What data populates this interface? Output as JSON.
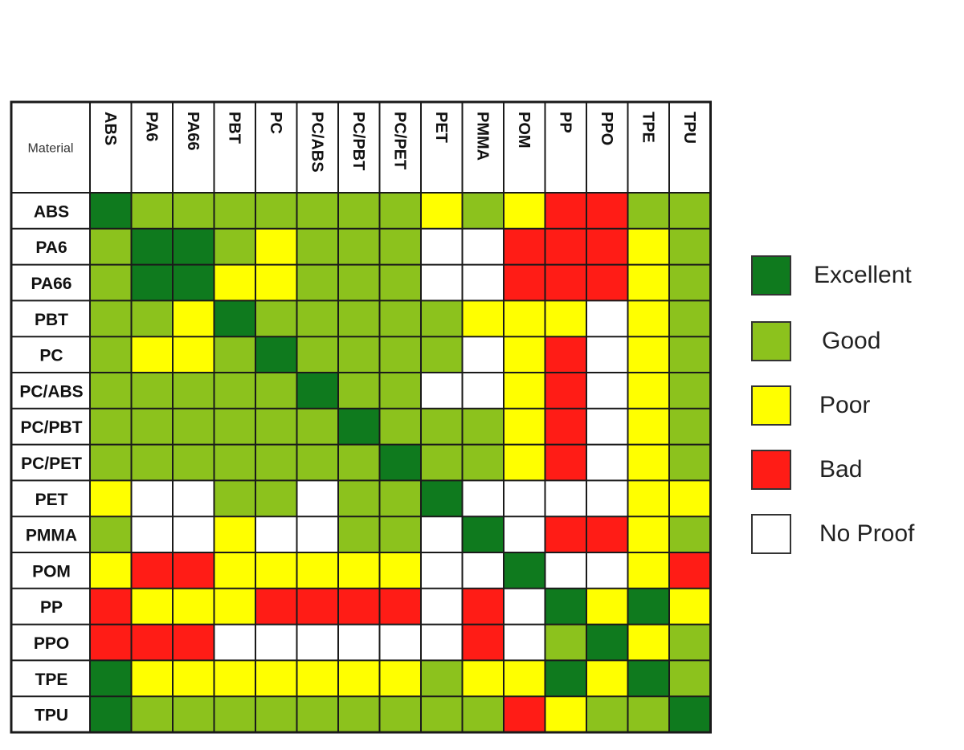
{
  "colors": {
    "excellent": "#0f7a1e",
    "good": "#8cc21d",
    "poor": "#ffff00",
    "bad": "#ff1c16",
    "no_proof": "#ffffff",
    "grid": "#1a1a1a"
  },
  "chart_data": {
    "type": "heatmap",
    "corner_label": "Material",
    "columns": [
      "ABS",
      "PA6",
      "PA66",
      "PBT",
      "PC",
      "PC/ABS",
      "PC/PBT",
      "PC/PET",
      "PET",
      "PMMA",
      "POM",
      "PP",
      "PPO",
      "TPE",
      "TPU"
    ],
    "rows": [
      "ABS",
      "PA6",
      "PA66",
      "PBT",
      "PC",
      "PC/ABS",
      "PC/PBT",
      "PC/PET",
      "PET",
      "PMMA",
      "POM",
      "PP",
      "PPO",
      "TPE",
      "TPU"
    ],
    "legend": [
      {
        "key": "E",
        "label": "Excellent"
      },
      {
        "key": "G",
        "label": "Good"
      },
      {
        "key": "P",
        "label": "Poor"
      },
      {
        "key": "B",
        "label": "Bad"
      },
      {
        "key": "N",
        "label": "No Proof"
      }
    ],
    "values": [
      [
        "E",
        "G",
        "G",
        "G",
        "G",
        "G",
        "G",
        "G",
        "P",
        "G",
        "P",
        "B",
        "B",
        "G",
        "G"
      ],
      [
        "G",
        "E",
        "E",
        "G",
        "P",
        "G",
        "G",
        "G",
        "N",
        "N",
        "B",
        "B",
        "B",
        "P",
        "G"
      ],
      [
        "G",
        "E",
        "E",
        "P",
        "P",
        "G",
        "G",
        "G",
        "N",
        "N",
        "B",
        "B",
        "B",
        "P",
        "G"
      ],
      [
        "G",
        "G",
        "P",
        "E",
        "G",
        "G",
        "G",
        "G",
        "G",
        "P",
        "P",
        "P",
        "N",
        "P",
        "G"
      ],
      [
        "G",
        "P",
        "P",
        "G",
        "E",
        "G",
        "G",
        "G",
        "G",
        "N",
        "P",
        "B",
        "N",
        "P",
        "G"
      ],
      [
        "G",
        "G",
        "G",
        "G",
        "G",
        "E",
        "G",
        "G",
        "N",
        "N",
        "P",
        "B",
        "N",
        "P",
        "G"
      ],
      [
        "G",
        "G",
        "G",
        "G",
        "G",
        "G",
        "E",
        "G",
        "G",
        "G",
        "P",
        "B",
        "N",
        "P",
        "G"
      ],
      [
        "G",
        "G",
        "G",
        "G",
        "G",
        "G",
        "G",
        "E",
        "G",
        "G",
        "P",
        "B",
        "N",
        "P",
        "G"
      ],
      [
        "P",
        "N",
        "N",
        "G",
        "G",
        "N",
        "G",
        "G",
        "E",
        "N",
        "N",
        "N",
        "N",
        "P",
        "P"
      ],
      [
        "G",
        "N",
        "N",
        "P",
        "N",
        "N",
        "G",
        "G",
        "N",
        "E",
        "N",
        "B",
        "B",
        "P",
        "G"
      ],
      [
        "P",
        "B",
        "B",
        "P",
        "P",
        "P",
        "P",
        "P",
        "N",
        "N",
        "E",
        "N",
        "N",
        "P",
        "B"
      ],
      [
        "B",
        "P",
        "P",
        "P",
        "B",
        "B",
        "B",
        "B",
        "N",
        "B",
        "N",
        "E",
        "P",
        "E",
        "P"
      ],
      [
        "B",
        "B",
        "B",
        "N",
        "N",
        "N",
        "N",
        "N",
        "N",
        "B",
        "N",
        "G",
        "E",
        "P",
        "G"
      ],
      [
        "E",
        "P",
        "P",
        "P",
        "P",
        "P",
        "P",
        "P",
        "G",
        "P",
        "P",
        "E",
        "P",
        "E",
        "G"
      ],
      [
        "E",
        "G",
        "G",
        "G",
        "G",
        "G",
        "G",
        "G",
        "G",
        "G",
        "B",
        "P",
        "G",
        "G",
        "E"
      ]
    ]
  }
}
